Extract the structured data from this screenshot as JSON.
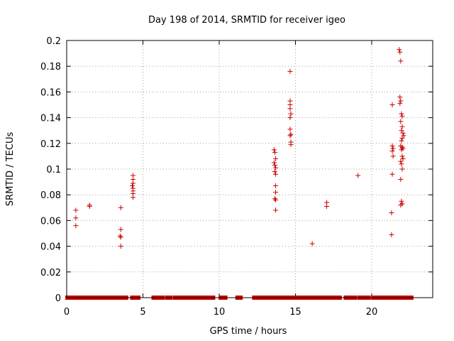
{
  "chart_data": {
    "type": "scatter",
    "title": "Day 198 of 2014, SRMTID for receiver igeo",
    "xlabel": "GPS time / hours",
    "ylabel": "SRMTID / TECUs",
    "xlim": [
      0,
      24
    ],
    "ylim": [
      0,
      0.2
    ],
    "grid": true,
    "marker": "+",
    "marker_color": "#cc0000",
    "x_ticks": [
      "0",
      "5",
      "10",
      "15",
      "20"
    ],
    "x_tick_values": [
      0,
      5,
      10,
      15,
      20
    ],
    "y_ticks": [
      "0",
      "0.02",
      "0.04",
      "0.06",
      "0.08",
      "0.1",
      "0.12",
      "0.14",
      "0.16",
      "0.18",
      "0.2"
    ],
    "y_tick_values": [
      0,
      0.02,
      0.04,
      0.06,
      0.08,
      0.1,
      0.12,
      0.14,
      0.16,
      0.18,
      0.2
    ],
    "zero_band": [
      [
        0.05,
        0.9
      ],
      [
        1.1,
        1.4
      ],
      [
        1.6,
        2.9
      ],
      [
        3.1,
        3.9
      ],
      [
        4.3,
        4.7
      ],
      [
        5.7,
        6.3
      ],
      [
        6.6,
        6.8
      ],
      [
        7.1,
        7.4
      ],
      [
        7.6,
        9.6
      ],
      [
        10.1,
        10.4
      ],
      [
        11.2,
        11.4
      ],
      [
        12.3,
        16.6
      ],
      [
        16.8,
        17.9
      ],
      [
        18.3,
        18.9
      ],
      [
        19.2,
        19.8
      ],
      [
        20.1,
        22.6
      ]
    ],
    "points": [
      {
        "x": 0.6,
        "y": 0.068
      },
      {
        "x": 0.6,
        "y": 0.062
      },
      {
        "x": 0.6,
        "y": 0.056
      },
      {
        "x": 1.5,
        "y": 0.072
      },
      {
        "x": 1.5,
        "y": 0.071
      },
      {
        "x": 3.55,
        "y": 0.07
      },
      {
        "x": 3.55,
        "y": 0.053
      },
      {
        "x": 3.5,
        "y": 0.048
      },
      {
        "x": 3.55,
        "y": 0.047
      },
      {
        "x": 3.55,
        "y": 0.04
      },
      {
        "x": 4.35,
        "y": 0.095
      },
      {
        "x": 4.35,
        "y": 0.092
      },
      {
        "x": 4.35,
        "y": 0.089
      },
      {
        "x": 4.3,
        "y": 0.087
      },
      {
        "x": 4.35,
        "y": 0.085
      },
      {
        "x": 4.35,
        "y": 0.083
      },
      {
        "x": 4.35,
        "y": 0.081
      },
      {
        "x": 4.35,
        "y": 0.078
      },
      {
        "x": 13.6,
        "y": 0.115
      },
      {
        "x": 13.65,
        "y": 0.113
      },
      {
        "x": 13.7,
        "y": 0.108
      },
      {
        "x": 13.6,
        "y": 0.105
      },
      {
        "x": 13.65,
        "y": 0.103
      },
      {
        "x": 13.7,
        "y": 0.101
      },
      {
        "x": 13.65,
        "y": 0.098
      },
      {
        "x": 13.7,
        "y": 0.096
      },
      {
        "x": 13.7,
        "y": 0.087
      },
      {
        "x": 13.7,
        "y": 0.082
      },
      {
        "x": 13.65,
        "y": 0.077
      },
      {
        "x": 13.7,
        "y": 0.076
      },
      {
        "x": 13.7,
        "y": 0.068
      },
      {
        "x": 14.65,
        "y": 0.176
      },
      {
        "x": 14.65,
        "y": 0.153
      },
      {
        "x": 14.65,
        "y": 0.15
      },
      {
        "x": 14.65,
        "y": 0.147
      },
      {
        "x": 14.7,
        "y": 0.143
      },
      {
        "x": 14.65,
        "y": 0.14
      },
      {
        "x": 14.65,
        "y": 0.131
      },
      {
        "x": 14.7,
        "y": 0.127
      },
      {
        "x": 14.65,
        "y": 0.126
      },
      {
        "x": 14.7,
        "y": 0.121
      },
      {
        "x": 14.7,
        "y": 0.119
      },
      {
        "x": 16.1,
        "y": 0.042
      },
      {
        "x": 17.05,
        "y": 0.074
      },
      {
        "x": 17.05,
        "y": 0.071
      },
      {
        "x": 19.1,
        "y": 0.095
      },
      {
        "x": 21.35,
        "y": 0.15
      },
      {
        "x": 21.35,
        "y": 0.118
      },
      {
        "x": 21.4,
        "y": 0.116
      },
      {
        "x": 21.35,
        "y": 0.114
      },
      {
        "x": 21.4,
        "y": 0.11
      },
      {
        "x": 21.35,
        "y": 0.096
      },
      {
        "x": 21.3,
        "y": 0.066
      },
      {
        "x": 21.3,
        "y": 0.049
      },
      {
        "x": 21.8,
        "y": 0.193
      },
      {
        "x": 21.85,
        "y": 0.191
      },
      {
        "x": 21.9,
        "y": 0.184
      },
      {
        "x": 21.85,
        "y": 0.156
      },
      {
        "x": 21.9,
        "y": 0.153
      },
      {
        "x": 21.85,
        "y": 0.151
      },
      {
        "x": 21.95,
        "y": 0.143
      },
      {
        "x": 22.0,
        "y": 0.141
      },
      {
        "x": 21.9,
        "y": 0.137
      },
      {
        "x": 22.0,
        "y": 0.133
      },
      {
        "x": 21.95,
        "y": 0.13
      },
      {
        "x": 22.05,
        "y": 0.128
      },
      {
        "x": 22.1,
        "y": 0.126
      },
      {
        "x": 22.0,
        "y": 0.124
      },
      {
        "x": 21.95,
        "y": 0.122
      },
      {
        "x": 21.9,
        "y": 0.118
      },
      {
        "x": 22.0,
        "y": 0.117
      },
      {
        "x": 22.05,
        "y": 0.116
      },
      {
        "x": 21.95,
        "y": 0.115
      },
      {
        "x": 22.0,
        "y": 0.11
      },
      {
        "x": 22.05,
        "y": 0.108
      },
      {
        "x": 21.9,
        "y": 0.106
      },
      {
        "x": 21.95,
        "y": 0.104
      },
      {
        "x": 22.0,
        "y": 0.1
      },
      {
        "x": 21.9,
        "y": 0.092
      },
      {
        "x": 21.95,
        "y": 0.075
      },
      {
        "x": 22.0,
        "y": 0.073
      },
      {
        "x": 21.9,
        "y": 0.072
      }
    ]
  }
}
